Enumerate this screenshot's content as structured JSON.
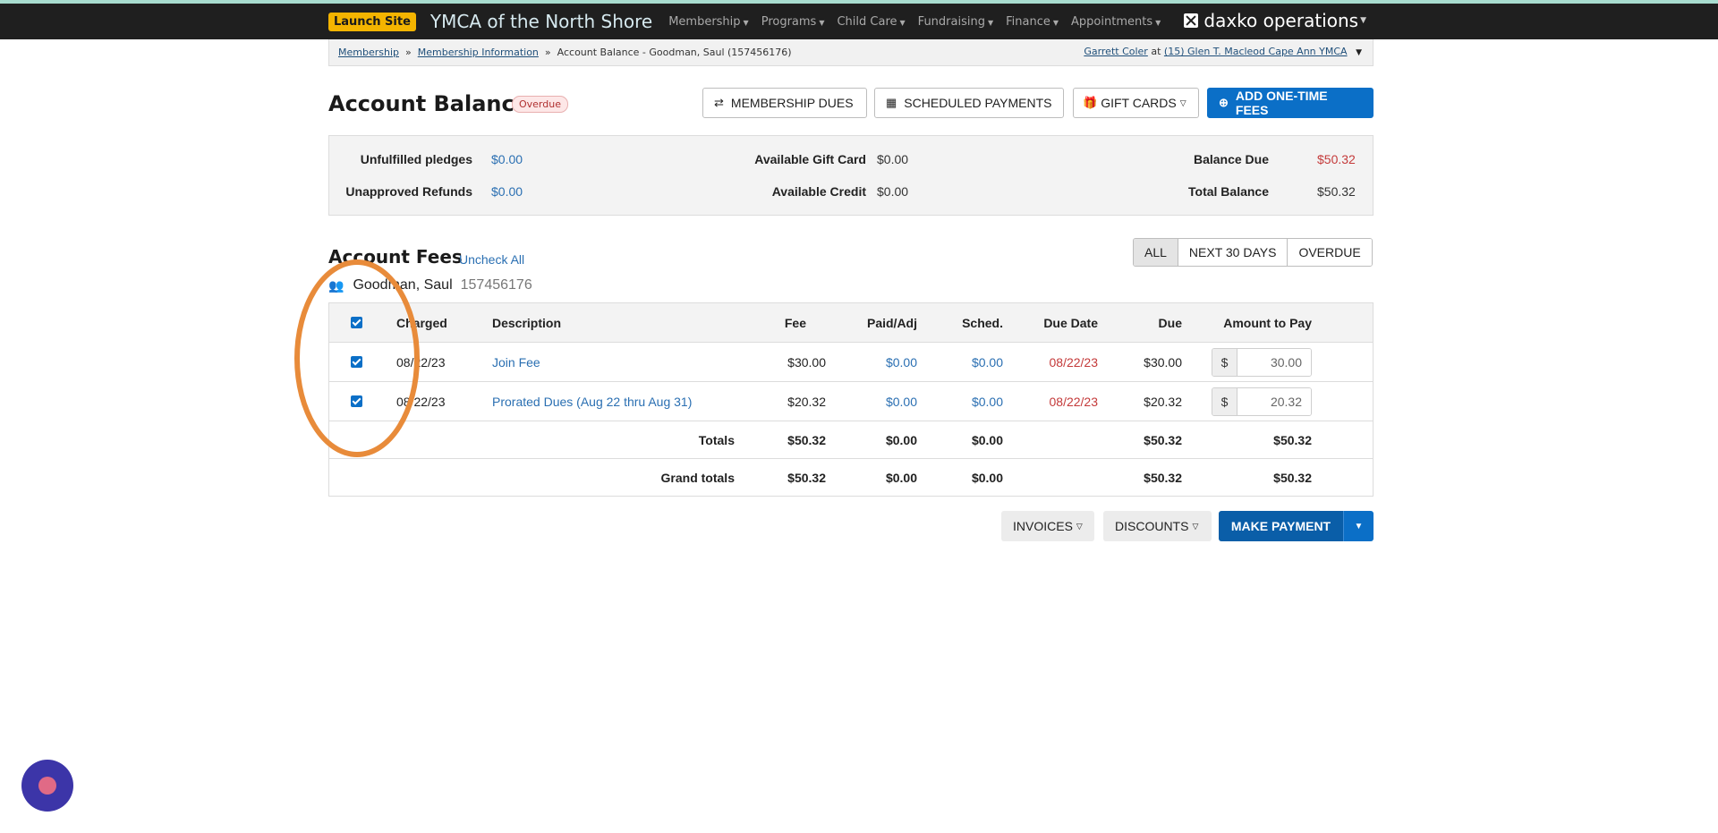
{
  "nav": {
    "launch_label": "Launch Site",
    "org_title": "YMCA of the North Shore",
    "items": [
      "Membership",
      "Programs",
      "Child Care",
      "Fundraising",
      "Finance",
      "Appointments"
    ],
    "brand": "daxko operations"
  },
  "breadcrumb": {
    "crumb1": "Membership",
    "crumb2": "Membership Information",
    "current": "Account Balance - Goodman, Saul (157456176)",
    "user": "Garrett Coler",
    "at": "at",
    "location": "(15) Glen T. Macleod Cape Ann YMCA"
  },
  "header": {
    "title": "Account Balance",
    "badge": "Overdue",
    "membership_dues": "MEMBERSHIP DUES",
    "scheduled_payments": "SCHEDULED PAYMENTS",
    "gift_cards": "GIFT CARDS",
    "add_fees": "ADD ONE-TIME FEES"
  },
  "summary": {
    "unfulfilled_pledges_label": "Unfulfilled pledges",
    "unfulfilled_pledges": "$0.00",
    "unapproved_refunds_label": "Unapproved Refunds",
    "unapproved_refunds": "$0.00",
    "gift_card_label": "Available Gift Card",
    "gift_card": "$0.00",
    "credit_label": "Available Credit",
    "credit": "$0.00",
    "balance_due_label": "Balance Due",
    "balance_due": "$50.32",
    "total_balance_label": "Total Balance",
    "total_balance": "$50.32"
  },
  "fees": {
    "title": "Account Fees",
    "uncheck_all": "Uncheck All",
    "filters": [
      "ALL",
      "NEXT 30 DAYS",
      "OVERDUE"
    ],
    "member_name": "Goodman, Saul",
    "member_id": "157456176",
    "columns": {
      "charged": "Charged",
      "description": "Description",
      "fee": "Fee",
      "paid": "Paid/Adj",
      "sched": "Sched.",
      "due_date": "Due Date",
      "due": "Due",
      "amount": "Amount to Pay"
    },
    "rows": [
      {
        "charged": "08/22/23",
        "description": "Join Fee",
        "fee": "$30.00",
        "paid": "$0.00",
        "sched": "$0.00",
        "due_date": "08/22/23",
        "due": "$30.00",
        "currency": "$",
        "amount": "30.00"
      },
      {
        "charged": "08/22/23",
        "description": "Prorated Dues (Aug 22 thru Aug 31)",
        "fee": "$20.32",
        "paid": "$0.00",
        "sched": "$0.00",
        "due_date": "08/22/23",
        "due": "$20.32",
        "currency": "$",
        "amount": "20.32"
      }
    ],
    "totals": {
      "label": "Totals",
      "fee": "$50.32",
      "paid": "$0.00",
      "sched": "$0.00",
      "due": "$50.32",
      "amount": "$50.32"
    },
    "grand_totals": {
      "label": "Grand totals",
      "fee": "$50.32",
      "paid": "$0.00",
      "sched": "$0.00",
      "due": "$50.32",
      "amount": "$50.32"
    }
  },
  "actions": {
    "invoices": "INVOICES",
    "discounts": "DISCOUNTS",
    "make_payment": "MAKE PAYMENT"
  },
  "colors": {
    "accent": "#0b6fc7",
    "overdue": "#c43a3a",
    "annotation": "#e88b3a"
  }
}
